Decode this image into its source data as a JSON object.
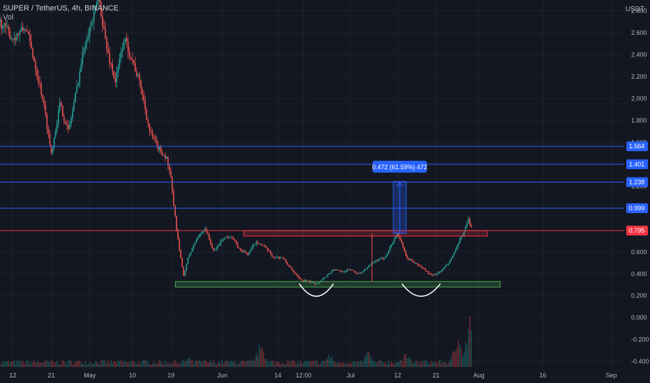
{
  "header": {
    "symbol_line": "SUPER / TetherUS, 4h, BINANCE",
    "volume_label": "Vol",
    "currency": "USDT"
  },
  "chart_data": {
    "type": "candlestick",
    "symbol": "SUPER / TetherUS",
    "interval": "4h",
    "exchange": "BINANCE",
    "ylim": [
      -0.45,
      2.9
    ],
    "y_ticks": [
      {
        "v": 2.8,
        "label": "2.800"
      },
      {
        "v": 2.6,
        "label": "2.600"
      },
      {
        "v": 2.4,
        "label": "2.400"
      },
      {
        "v": 2.2,
        "label": "2.200"
      },
      {
        "v": 2.0,
        "label": "2.000"
      },
      {
        "v": 1.8,
        "label": "1.800"
      },
      {
        "v": 1.6,
        "label": "1.600"
      },
      {
        "v": 1.2,
        "label": "1.200"
      },
      {
        "v": 0.6,
        "label": "0.600"
      },
      {
        "v": 0.4,
        "label": "0.400"
      },
      {
        "v": 0.2,
        "label": "0.200"
      },
      {
        "v": 0.0,
        "label": "0.000"
      },
      {
        "v": -0.2,
        "label": "-0.200"
      },
      {
        "v": -0.4,
        "label": "-0.400"
      }
    ],
    "x_ticks": [
      {
        "day": 12,
        "label": "12"
      },
      {
        "day": 21,
        "label": "21"
      },
      {
        "day": 30,
        "label": "May"
      },
      {
        "day": 40,
        "label": "10"
      },
      {
        "day": 49,
        "label": "19"
      },
      {
        "day": 61,
        "label": "Jun"
      },
      {
        "day": 74,
        "label": "14"
      },
      {
        "day": 80,
        "label": "12:00"
      },
      {
        "day": 91,
        "label": "Jul"
      },
      {
        "day": 102,
        "label": "12"
      },
      {
        "day": 111,
        "label": "21"
      },
      {
        "day": 121,
        "label": "Aug"
      },
      {
        "day": 136,
        "label": "16"
      },
      {
        "day": 152,
        "label": "Sep"
      }
    ],
    "x_range_days": [
      9,
      155
    ],
    "price_path": [
      [
        9,
        2.7
      ],
      [
        12,
        2.55
      ],
      [
        15,
        2.65
      ],
      [
        17,
        2.35
      ],
      [
        19,
        2.0
      ],
      [
        21,
        1.5
      ],
      [
        23,
        1.95
      ],
      [
        25,
        1.7
      ],
      [
        27,
        2.1
      ],
      [
        29,
        2.55
      ],
      [
        31,
        2.75
      ],
      [
        32,
        2.95
      ],
      [
        34,
        2.45
      ],
      [
        36,
        2.15
      ],
      [
        38,
        2.55
      ],
      [
        40,
        2.35
      ],
      [
        42,
        2.1
      ],
      [
        44,
        1.7
      ],
      [
        46,
        1.55
      ],
      [
        48,
        1.45
      ],
      [
        49,
        1.25
      ],
      [
        50,
        0.9
      ],
      [
        51,
        0.6
      ],
      [
        52,
        0.38
      ],
      [
        53,
        0.55
      ],
      [
        55,
        0.72
      ],
      [
        57,
        0.82
      ],
      [
        59,
        0.6
      ],
      [
        61,
        0.72
      ],
      [
        63,
        0.75
      ],
      [
        65,
        0.62
      ],
      [
        67,
        0.58
      ],
      [
        69,
        0.7
      ],
      [
        71,
        0.64
      ],
      [
        73,
        0.55
      ],
      [
        75,
        0.55
      ],
      [
        77,
        0.45
      ],
      [
        79,
        0.35
      ],
      [
        81,
        0.33
      ],
      [
        83,
        0.31
      ],
      [
        85,
        0.37
      ],
      [
        87,
        0.44
      ],
      [
        89,
        0.42
      ],
      [
        91,
        0.44
      ],
      [
        93,
        0.4
      ],
      [
        95,
        0.46
      ],
      [
        97,
        0.52
      ],
      [
        99,
        0.55
      ],
      [
        101,
        0.7
      ],
      [
        102,
        0.78
      ],
      [
        104,
        0.55
      ],
      [
        106,
        0.5
      ],
      [
        108,
        0.45
      ],
      [
        110,
        0.38
      ],
      [
        112,
        0.42
      ],
      [
        114,
        0.5
      ],
      [
        116,
        0.65
      ],
      [
        117,
        0.75
      ],
      [
        118,
        0.82
      ],
      [
        118.5,
        0.9
      ],
      [
        119,
        0.82
      ],
      [
        119.5,
        0.8
      ]
    ],
    "volume_ylim": [
      0,
      1
    ],
    "volume_spikes": [
      {
        "day": 53,
        "value": 0.18
      },
      {
        "day": 70,
        "value": 0.5
      },
      {
        "day": 86,
        "value": 0.25
      },
      {
        "day": 95,
        "value": 0.3
      },
      {
        "day": 104,
        "value": 0.28
      },
      {
        "day": 116,
        "value": 0.6
      },
      {
        "day": 119,
        "value": 0.95
      }
    ],
    "horizontal_levels": [
      {
        "price": 1.564,
        "label": "1.564",
        "color": "#2962ff"
      },
      {
        "price": 1.401,
        "label": "1.401",
        "color": "#2962ff"
      },
      {
        "price": 1.238,
        "label": "1.238",
        "color": "#2962ff"
      },
      {
        "price": 0.999,
        "label": "0.999",
        "color": "#2962ff"
      },
      {
        "price": 0.795,
        "label": "0.795",
        "color": "#f23645"
      }
    ],
    "resistance_zone": {
      "day_from": 66,
      "day_to": 123,
      "price_low": 0.745,
      "price_high": 0.795,
      "color": "#f23645"
    },
    "support_zone": {
      "day_from": 50,
      "day_to": 126,
      "price_low": 0.28,
      "price_high": 0.33,
      "color": "#4caf50"
    },
    "cup_arcs": [
      {
        "day_from": 79,
        "day_to": 87,
        "price": 0.31
      },
      {
        "day_from": 103,
        "day_to": 112,
        "price": 0.31
      }
    ],
    "cup_separator": {
      "day": 96,
      "price_from": 0.33,
      "price_to": 0.77
    },
    "measurement": {
      "day_from": 101,
      "day_to": 104,
      "price_from": 0.77,
      "price_to": 1.242,
      "label": "0.472 (61.59%) 472"
    },
    "colors": {
      "background": "#131722",
      "grid": "#1e222d",
      "up": "#26a69a",
      "down": "#ef5350",
      "measure": "#2962ff",
      "axis_text": "#b2b5be"
    }
  }
}
